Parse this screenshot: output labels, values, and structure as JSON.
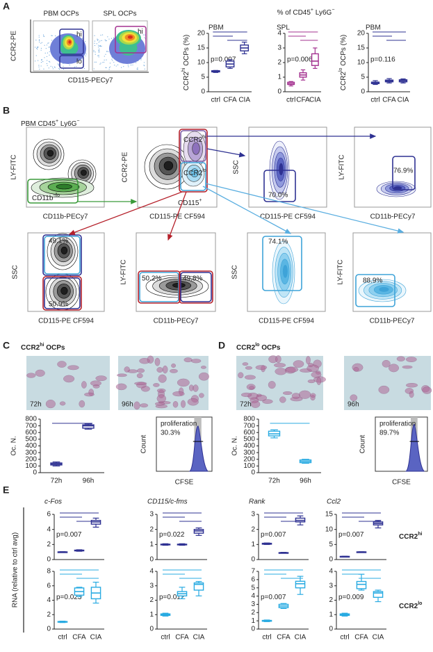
{
  "panel_labels": [
    "A",
    "B",
    "C",
    "D",
    "E"
  ],
  "panel_a": {
    "header": [
      "% of CD45",
      "+",
      " Ly6G",
      "−"
    ],
    "flow_titles": [
      "PBM OCPs",
      "SPL OCPs"
    ],
    "y_axis": "CCR2-PE",
    "x_axis": "CD115-PECy7",
    "gates": [
      "hi",
      "lo",
      "hi"
    ]
  },
  "panel_b": {
    "title": [
      "PBM CD45",
      "+",
      " Ly6G",
      "−"
    ],
    "plots": [
      {
        "y_label": "LY-FITC",
        "x_label": "CD11b-PECy7",
        "gates": [
          [
            "CD11b",
            "-/lo"
          ]
        ]
      },
      {
        "y_label": "CCR2-PE",
        "x_label": "CD115-PE CF594",
        "gates": [
          [
            "CCR2",
            "hi"
          ],
          [
            "CCR2",
            "lo"
          ],
          [
            "CD115",
            "+"
          ]
        ]
      },
      {
        "y_label": "SSC",
        "x_label": "CD115-PE CF594",
        "gates": [
          "70.0%"
        ]
      },
      {
        "y_label": "LY-FITC",
        "x_label": "CD11b-PECy7",
        "gates": [
          "76.9%"
        ]
      },
      {
        "y_label": "SSC",
        "x_label": "CD115-PE CF594",
        "gates": [
          "49.1%",
          "50.9%"
        ]
      },
      {
        "y_label": "LY-FITC",
        "x_label": "CD11b-PECy7",
        "gates": [
          "50.2%",
          "49.8%"
        ]
      },
      {
        "y_label": "SSC",
        "x_label": "CD115-PE CF594",
        "gates": [
          "74.1%"
        ]
      },
      {
        "y_label": "LY-FITC",
        "x_label": "CD11b-PECy7",
        "gates": [
          "88.9%"
        ]
      }
    ]
  },
  "panel_c": {
    "title": [
      "CCR2",
      "hi",
      " OCPs"
    ],
    "image_labels": [
      "72h",
      "96h"
    ],
    "histogram": {
      "y_label": "Count",
      "x_label": "CFSE",
      "annotation": "proliferation",
      "value": "30.3%"
    }
  },
  "panel_d": {
    "title": [
      "CCR2",
      "lo",
      " OCPs"
    ],
    "image_labels": [
      "72h",
      "96h"
    ],
    "histogram": {
      "y_label": "Count",
      "x_label": "CFSE",
      "annotation": "proliferation",
      "value": "89.7%"
    }
  },
  "panel_e": {
    "y_label": "RNA (relative to ctrl avg)",
    "row_labels": [
      [
        "CCR2",
        "hi"
      ],
      [
        "CCR2",
        "lo"
      ]
    ]
  },
  "chart_data": [
    {
      "type": "box",
      "title": "PBM",
      "y_label": [
        "CCR2",
        "hi",
        " OCPs (%)"
      ],
      "categories": [
        "ctrl",
        "CFA",
        "CIA"
      ],
      "color": "#2e3192",
      "ylim": [
        0,
        20
      ],
      "yticks": [
        0,
        5,
        10,
        15,
        20
      ],
      "annotation": "p=0.007",
      "boxes": [
        {
          "min": 6.6,
          "q1": 6.8,
          "median": 7,
          "q3": 7.2,
          "max": 7.3
        },
        {
          "min": 8,
          "q1": 8.5,
          "median": 9.5,
          "q3": 10.5,
          "max": 11
        },
        {
          "min": 13,
          "q1": 14,
          "median": 15,
          "q3": 16,
          "max": 17
        }
      ]
    },
    {
      "type": "box",
      "title": "SPL",
      "categories": [
        "ctrl",
        "CFA",
        "CIA"
      ],
      "color": "#a3308f",
      "ylim": [
        0,
        4
      ],
      "yticks": [
        0,
        1,
        2,
        3,
        4
      ],
      "annotation": "p=0.006",
      "boxes": [
        {
          "min": 0.4,
          "q1": 0.5,
          "median": 0.55,
          "q3": 0.65,
          "max": 0.7
        },
        {
          "min": 0.8,
          "q1": 1.0,
          "median": 1.15,
          "q3": 1.3,
          "max": 1.5
        },
        {
          "min": 1.6,
          "q1": 1.8,
          "median": 2.1,
          "q3": 2.6,
          "max": 3.0
        }
      ]
    },
    {
      "type": "box",
      "title": "PBM",
      "y_label": [
        "CCR2",
        "lo",
        " OCPs (%)"
      ],
      "categories": [
        "ctrl",
        "CFA",
        "CIA"
      ],
      "color": "#2e3192",
      "ylim": [
        0,
        20
      ],
      "yticks": [
        0,
        5,
        10,
        15,
        20
      ],
      "annotation": "p=0.116",
      "boxes": [
        {
          "min": 2.5,
          "q1": 2.8,
          "median": 3,
          "q3": 3.3,
          "max": 3.8
        },
        {
          "min": 3,
          "q1": 3.4,
          "median": 3.7,
          "q3": 4,
          "max": 4.5
        },
        {
          "min": 3,
          "q1": 3.4,
          "median": 3.8,
          "q3": 4.1,
          "max": 4.4
        }
      ]
    },
    {
      "type": "box",
      "y_label": "Oc. N.",
      "categories": [
        "72h",
        "96h"
      ],
      "color": "#2e3192",
      "ylim": [
        0,
        800
      ],
      "yticks": [
        0,
        100,
        200,
        300,
        400,
        500,
        600,
        700,
        800
      ],
      "boxes": [
        {
          "min": 100,
          "q1": 115,
          "median": 130,
          "q3": 145,
          "max": 160
        },
        {
          "min": 650,
          "q1": 665,
          "median": 700,
          "q3": 715,
          "max": 730
        }
      ]
    },
    {
      "type": "box",
      "y_label": "Oc. N.",
      "categories": [
        "72h",
        "96h"
      ],
      "color": "#29abe2",
      "ylim": [
        0,
        800
      ],
      "yticks": [
        0,
        100,
        200,
        300,
        400,
        500,
        600,
        700,
        800
      ],
      "boxes": [
        {
          "min": 520,
          "q1": 550,
          "median": 580,
          "q3": 620,
          "max": 640
        },
        {
          "min": 140,
          "q1": 150,
          "median": 170,
          "q3": 190,
          "max": 200
        }
      ]
    },
    {
      "type": "box",
      "title": "c-Fos",
      "color": "#2e3192",
      "ylim": [
        0,
        6
      ],
      "yticks": [
        0,
        2,
        4,
        6
      ],
      "annotation": "p=0.007",
      "boxes": [
        {
          "min": 0.95,
          "q1": 0.98,
          "median": 1,
          "q3": 1.02,
          "max": 1.05
        },
        {
          "min": 1.1,
          "q1": 1.15,
          "median": 1.2,
          "q3": 1.25,
          "max": 1.3
        },
        {
          "min": 4.3,
          "q1": 4.7,
          "median": 5,
          "q3": 5.2,
          "max": 5.5
        }
      ]
    },
    {
      "type": "box",
      "title": "CD115/c-fms",
      "color": "#2e3192",
      "ylim": [
        0,
        3
      ],
      "yticks": [
        0,
        1,
        2,
        3
      ],
      "annotation": "p=0.022",
      "boxes": [
        {
          "min": 0.95,
          "q1": 0.98,
          "median": 1,
          "q3": 1.02,
          "max": 1.05
        },
        {
          "min": 0.95,
          "q1": 0.98,
          "median": 1,
          "q3": 1.02,
          "max": 1.05
        },
        {
          "min": 1.6,
          "q1": 1.75,
          "median": 1.9,
          "q3": 2.0,
          "max": 2.1
        }
      ]
    },
    {
      "type": "box",
      "title": "Rank",
      "color": "#2e3192",
      "ylim": [
        0,
        3
      ],
      "yticks": [
        0,
        1,
        2,
        3
      ],
      "annotation": "p=0.007",
      "boxes": [
        {
          "min": 1.0,
          "q1": 1.02,
          "median": 1.05,
          "q3": 1.08,
          "max": 1.1
        },
        {
          "min": 0.42,
          "q1": 0.44,
          "median": 0.45,
          "q3": 0.46,
          "max": 0.48
        },
        {
          "min": 2.3,
          "q1": 2.5,
          "median": 2.6,
          "q3": 2.75,
          "max": 2.9
        }
      ]
    },
    {
      "type": "box",
      "title": "Ccl2",
      "color": "#2e3192",
      "ylim": [
        0,
        15
      ],
      "yticks": [
        0,
        5,
        10,
        15
      ],
      "annotation": "p=0.007",
      "boxes": [
        {
          "min": 0.9,
          "q1": 0.95,
          "median": 1,
          "q3": 1.05,
          "max": 1.1
        },
        {
          "min": 2.4,
          "q1": 2.45,
          "median": 2.5,
          "q3": 2.55,
          "max": 2.6
        },
        {
          "min": 10.5,
          "q1": 11.5,
          "median": 12,
          "q3": 12.5,
          "max": 13
        }
      ]
    },
    {
      "type": "box",
      "categories": [
        "ctrl",
        "CFA",
        "CIA"
      ],
      "color": "#29abe2",
      "ylim": [
        0,
        8
      ],
      "yticks": [
        0,
        2,
        4,
        6,
        8
      ],
      "annotation": "p=0.023",
      "boxes": [
        {
          "min": 0.9,
          "q1": 0.95,
          "median": 1,
          "q3": 1.05,
          "max": 1.1
        },
        {
          "min": 4.5,
          "q1": 4.7,
          "median": 5.2,
          "q3": 5.7,
          "max": 5.8
        },
        {
          "min": 3.6,
          "q1": 4.2,
          "median": 5,
          "q3": 5.8,
          "max": 6.5
        }
      ]
    },
    {
      "type": "box",
      "categories": [
        "ctrl",
        "CFA",
        "CIA"
      ],
      "color": "#29abe2",
      "ylim": [
        0,
        4
      ],
      "yticks": [
        0,
        1,
        2,
        3,
        4
      ],
      "annotation": "p=0.012",
      "boxes": [
        {
          "min": 0.9,
          "q1": 0.95,
          "median": 1,
          "q3": 1.05,
          "max": 1.1
        },
        {
          "min": 2.1,
          "q1": 2.3,
          "median": 2.45,
          "q3": 2.6,
          "max": 2.9
        },
        {
          "min": 2.3,
          "q1": 2.7,
          "median": 3.1,
          "q3": 3.2,
          "max": 3.3
        }
      ]
    },
    {
      "type": "box",
      "categories": [
        "ctrl",
        "CFA",
        "CIA"
      ],
      "color": "#29abe2",
      "ylim": [
        0,
        7
      ],
      "yticks": [
        0,
        1,
        2,
        3,
        4,
        5,
        6,
        7
      ],
      "annotation": "p=0.007",
      "boxes": [
        {
          "min": 0.9,
          "q1": 0.95,
          "median": 1,
          "q3": 1.05,
          "max": 1.1
        },
        {
          "min": 2.5,
          "q1": 2.6,
          "median": 2.8,
          "q3": 3.0,
          "max": 3.1
        },
        {
          "min": 4.2,
          "q1": 5.0,
          "median": 5.5,
          "q3": 5.8,
          "max": 6.4
        }
      ]
    },
    {
      "type": "box",
      "categories": [
        "ctrl",
        "CFA",
        "CIA"
      ],
      "color": "#29abe2",
      "ylim": [
        0,
        4
      ],
      "yticks": [
        0,
        1,
        2,
        3,
        4
      ],
      "annotation": "p=0.009",
      "boxes": [
        {
          "min": 0.9,
          "q1": 0.95,
          "median": 1,
          "q3": 1.05,
          "max": 1.1
        },
        {
          "min": 2.7,
          "q1": 2.8,
          "median": 3.1,
          "q3": 3.3,
          "max": 3.8
        },
        {
          "min": 1.9,
          "q1": 2.2,
          "median": 2.5,
          "q3": 2.6,
          "max": 2.7
        }
      ]
    }
  ]
}
